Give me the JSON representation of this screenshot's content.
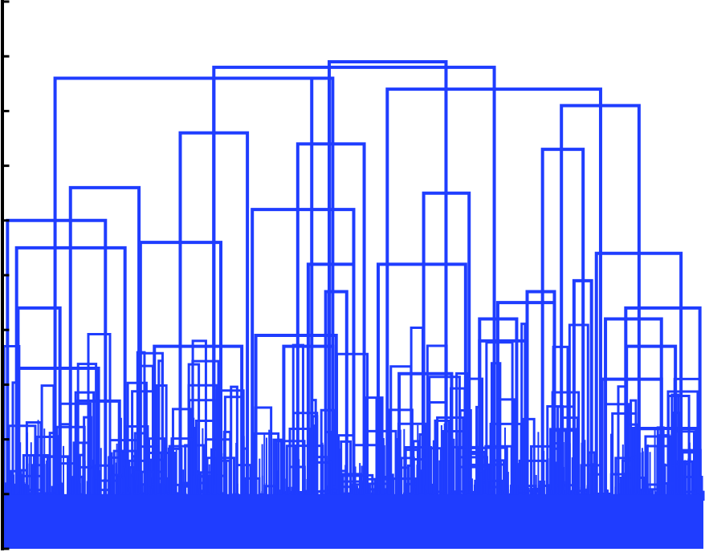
{
  "chart_data": {
    "type": "dendrogram",
    "title": "",
    "xlabel": "",
    "ylabel": "",
    "ylim": [
      0,
      1.0
    ],
    "y_ticks": [
      0.0,
      0.1,
      0.2,
      0.3,
      0.4,
      0.5,
      0.6,
      0.7,
      0.8,
      0.9,
      1.0
    ],
    "tick_labels_shown": false,
    "grid": false,
    "legend": "none",
    "colors": {
      "link": "#1f3dff",
      "axis": "#000000",
      "background": "#ffffff"
    },
    "leaf_count": 2000,
    "dense_leaf_mass_height": 0.1,
    "merges": [
      {
        "id": "A",
        "left_x": 0.005,
        "right_x": 0.145,
        "height": 0.6,
        "left_child_h": 0.0,
        "right_child_h": 0.0
      },
      {
        "id": "B",
        "left_x": 0.095,
        "right_x": 0.193,
        "height": 0.66,
        "left_child_h": 0.0,
        "right_child_h": 0.0
      },
      {
        "id": "C",
        "left_x": 0.018,
        "right_x": 0.173,
        "height": 0.55,
        "left_child_h": 0.0,
        "right_child_h": 0.0
      },
      {
        "id": "D",
        "left_x": 0.02,
        "right_x": 0.08,
        "height": 0.44,
        "left_child_h": 0.0,
        "right_child_h": 0.0
      },
      {
        "id": "E",
        "left_x": 0.02,
        "right_x": 0.135,
        "height": 0.33,
        "left_child_h": 0.0,
        "right_child_h": 0.0
      },
      {
        "id": "F",
        "left_x": 0.105,
        "right_x": 0.165,
        "height": 0.27,
        "left_child_h": 0.0,
        "right_child_h": 0.0
      },
      {
        "id": "G",
        "left_x": 0.073,
        "right_x": 0.44,
        "height": 0.86,
        "left_child_h": 0.0,
        "right_child_h": 0.0
      },
      {
        "id": "H",
        "left_x": 0.252,
        "right_x": 0.348,
        "height": 0.76,
        "left_child_h": 0.0,
        "right_child_h": 0.0
      },
      {
        "id": "I",
        "left_x": 0.195,
        "right_x": 0.31,
        "height": 0.56,
        "left_child_h": 0.0,
        "right_child_h": 0.0
      },
      {
        "id": "J",
        "left_x": 0.215,
        "right_x": 0.34,
        "height": 0.37,
        "left_child_h": 0.0,
        "right_child_h": 0.0
      },
      {
        "id": "K",
        "left_x": 0.3,
        "right_x": 0.47,
        "height": 0.86,
        "left_child_h": 0.0,
        "right_child_h": 0.0
      },
      {
        "id": "L",
        "left_x": 0.355,
        "right_x": 0.5,
        "height": 0.62,
        "left_child_h": 0.0,
        "right_child_h": 0.0
      },
      {
        "id": "M",
        "left_x": 0.42,
        "right_x": 0.515,
        "height": 0.74,
        "left_child_h": 0.0,
        "right_child_h": 0.0
      },
      {
        "id": "N",
        "left_x": 0.465,
        "right_x": 0.632,
        "height": 0.89,
        "left_child_h": 0.0,
        "right_child_h": 0.0
      },
      {
        "id": "O",
        "left_x": 0.6,
        "right_x": 0.665,
        "height": 0.65,
        "left_child_h": 0.0,
        "right_child_h": 0.0
      },
      {
        "id": "P",
        "left_x": 0.535,
        "right_x": 0.66,
        "height": 0.52,
        "left_child_h": 0.0,
        "right_child_h": 0.0
      },
      {
        "id": "Q",
        "left_x": 0.548,
        "right_x": 0.853,
        "height": 0.84,
        "left_child_h": 0.0,
        "right_child_h": 0.0
      },
      {
        "id": "R",
        "left_x": 0.3,
        "right_x": 0.701,
        "height": 0.88,
        "left_child_h": 0.0,
        "right_child_h": 0.0
      },
      {
        "id": "S",
        "left_x": 0.797,
        "right_x": 0.908,
        "height": 0.81,
        "left_child_h": 0.0,
        "right_child_h": 0.0
      },
      {
        "id": "T",
        "left_x": 0.77,
        "right_x": 0.828,
        "height": 0.73,
        "left_child_h": 0.0,
        "right_child_h": 0.0
      },
      {
        "id": "U",
        "left_x": 0.847,
        "right_x": 0.968,
        "height": 0.54,
        "left_child_h": 0.0,
        "right_child_h": 0.0
      },
      {
        "id": "V",
        "left_x": 0.748,
        "right_x": 0.787,
        "height": 0.47,
        "left_child_h": 0.0,
        "right_child_h": 0.0
      },
      {
        "id": "W",
        "left_x": 0.815,
        "right_x": 0.84,
        "height": 0.49,
        "left_child_h": 0.0,
        "right_child_h": 0.0
      },
      {
        "id": "X",
        "left_x": 0.86,
        "right_x": 0.94,
        "height": 0.42,
        "left_child_h": 0.0,
        "right_child_h": 0.0
      },
      {
        "id": "Y",
        "left_x": 0.889,
        "right_x": 0.995,
        "height": 0.44,
        "left_child_h": 0.0,
        "right_child_h": 0.0
      },
      {
        "id": "Z",
        "left_x": 0.68,
        "right_x": 0.733,
        "height": 0.42,
        "left_child_h": 0.0,
        "right_child_h": 0.0
      },
      {
        "id": "AA",
        "left_x": 0.706,
        "right_x": 0.787,
        "height": 0.45,
        "left_child_h": 0.0,
        "right_child_h": 0.0
      },
      {
        "id": "AB",
        "left_x": 0.435,
        "right_x": 0.5,
        "height": 0.52,
        "left_child_h": 0.0,
        "right_child_h": 0.0
      },
      {
        "id": "AC",
        "left_x": 0.46,
        "right_x": 0.49,
        "height": 0.47,
        "left_child_h": 0.0,
        "right_child_h": 0.0
      },
      {
        "id": "AD",
        "left_x": 0.36,
        "right_x": 0.475,
        "height": 0.39,
        "left_child_h": 0.0,
        "right_child_h": 0.0
      },
      {
        "id": "AE",
        "left_x": 0.4,
        "right_x": 0.47,
        "height": 0.37,
        "left_child_h": 0.0,
        "right_child_h": 0.0
      },
      {
        "id": "AF",
        "left_x": 0.565,
        "right_x": 0.64,
        "height": 0.32,
        "left_child_h": 0.0,
        "right_child_h": 0.0
      },
      {
        "id": "AG",
        "left_x": 0.68,
        "right_x": 0.748,
        "height": 0.38,
        "left_child_h": 0.0,
        "right_child_h": 0.0
      },
      {
        "id": "AH",
        "left_x": 0.89,
        "right_x": 0.96,
        "height": 0.37,
        "left_child_h": 0.0,
        "right_child_h": 0.0
      },
      {
        "id": "AI",
        "left_x": 0.855,
        "right_x": 0.94,
        "height": 0.31,
        "left_child_h": 0.0,
        "right_child_h": 0.0
      },
      {
        "id": "AJ",
        "left_x": 0.9,
        "right_x": 0.99,
        "height": 0.22,
        "left_child_h": 0.0,
        "right_child_h": 0.0
      }
    ]
  }
}
